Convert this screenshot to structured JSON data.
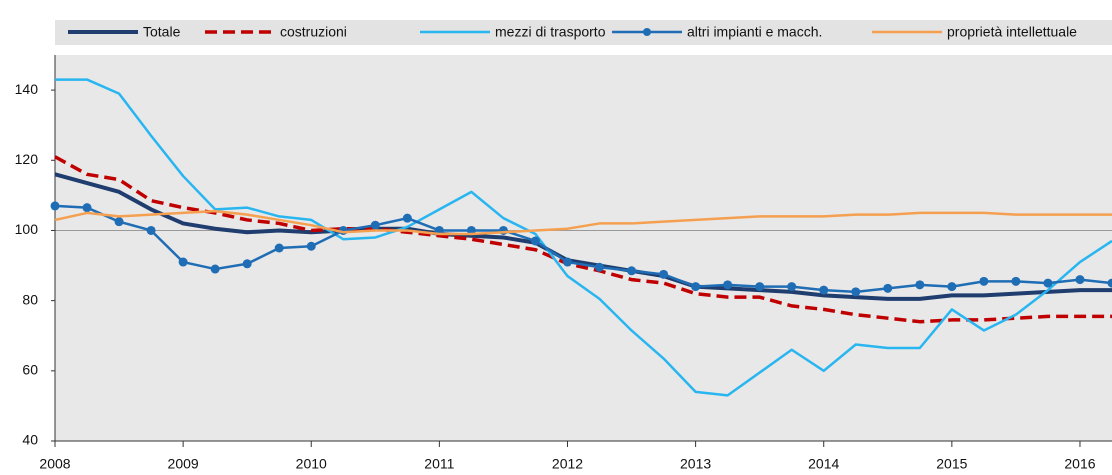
{
  "chart_data": {
    "type": "line",
    "categories": [
      "2008",
      null,
      null,
      null,
      "2009",
      null,
      null,
      null,
      "2010",
      null,
      null,
      null,
      "2011",
      null,
      null,
      null,
      "2012",
      null,
      null,
      null,
      "2013",
      null,
      null,
      null,
      "2014",
      null,
      null,
      null,
      "2015",
      null,
      null,
      null,
      "2016",
      null
    ],
    "series": [
      {
        "name": "Totale",
        "color": "#1f3d6e",
        "dash": false,
        "markers": false,
        "width": 4,
        "values": [
          116,
          113.5,
          111,
          106,
          102,
          100.5,
          99.5,
          100,
          99.5,
          100,
          100.5,
          100.5,
          99,
          98.5,
          98,
          96.5,
          91.5,
          90,
          88.5,
          87,
          84,
          83.5,
          83,
          82.5,
          81.5,
          81,
          80.5,
          80.5,
          81.5,
          81.5,
          82,
          82.5,
          83,
          83
        ]
      },
      {
        "name": "costruzioni",
        "color": "#c00000",
        "dash": true,
        "markers": false,
        "width": 3.5,
        "values": [
          121,
          116,
          114.5,
          108.5,
          106.5,
          105,
          103,
          102,
          100,
          100.5,
          100.5,
          99.5,
          98.5,
          97.5,
          96,
          94.5,
          90.5,
          88.5,
          86,
          85,
          82,
          81,
          81,
          78.5,
          77.5,
          76,
          75,
          74,
          74.5,
          74.5,
          75,
          75.5,
          75.5,
          75.5
        ]
      },
      {
        "name": "mezzi di trasporto",
        "color": "#29b6f0",
        "dash": false,
        "markers": false,
        "width": 2.5,
        "values": [
          143,
          143,
          139,
          127,
          115.5,
          106,
          106.5,
          104,
          103,
          97.5,
          98,
          101,
          106,
          111,
          103.5,
          99,
          87,
          80.5,
          71.5,
          63.5,
          54,
          53,
          59.5,
          66,
          60,
          67.5,
          66.5,
          66.5,
          77.5,
          71.5,
          76,
          83,
          91,
          97
        ]
      },
      {
        "name": "altri impianti e macch.",
        "color": "#1f6db5",
        "dash": false,
        "markers": true,
        "width": 2.5,
        "values": [
          107,
          106.5,
          102.5,
          100,
          91,
          89,
          90.5,
          95,
          95.5,
          100,
          101.5,
          103.5,
          100,
          100,
          100,
          97,
          91,
          89.5,
          88.5,
          87.5,
          84,
          84.5,
          84,
          84,
          83,
          82.5,
          83.5,
          84.5,
          84,
          85.5,
          85.5,
          85,
          86,
          85
        ]
      },
      {
        "name": "proprietà intellettuale",
        "color": "#f5a050",
        "dash": false,
        "markers": false,
        "width": 2.5,
        "values": [
          103,
          105,
          104,
          104.5,
          105,
          105.5,
          104.5,
          103,
          101.5,
          99.5,
          100,
          100,
          99,
          99,
          99.5,
          100,
          100.5,
          102,
          102,
          102.5,
          103,
          103.5,
          104,
          104,
          104,
          104.5,
          104.5,
          105,
          105,
          105,
          104.5,
          104.5,
          104.5,
          104.5
        ]
      }
    ],
    "ylim": [
      40,
      150
    ],
    "yticks": [
      40,
      60,
      80,
      100,
      120,
      140
    ],
    "reference_line": 100,
    "grid": false,
    "legend": "top"
  }
}
